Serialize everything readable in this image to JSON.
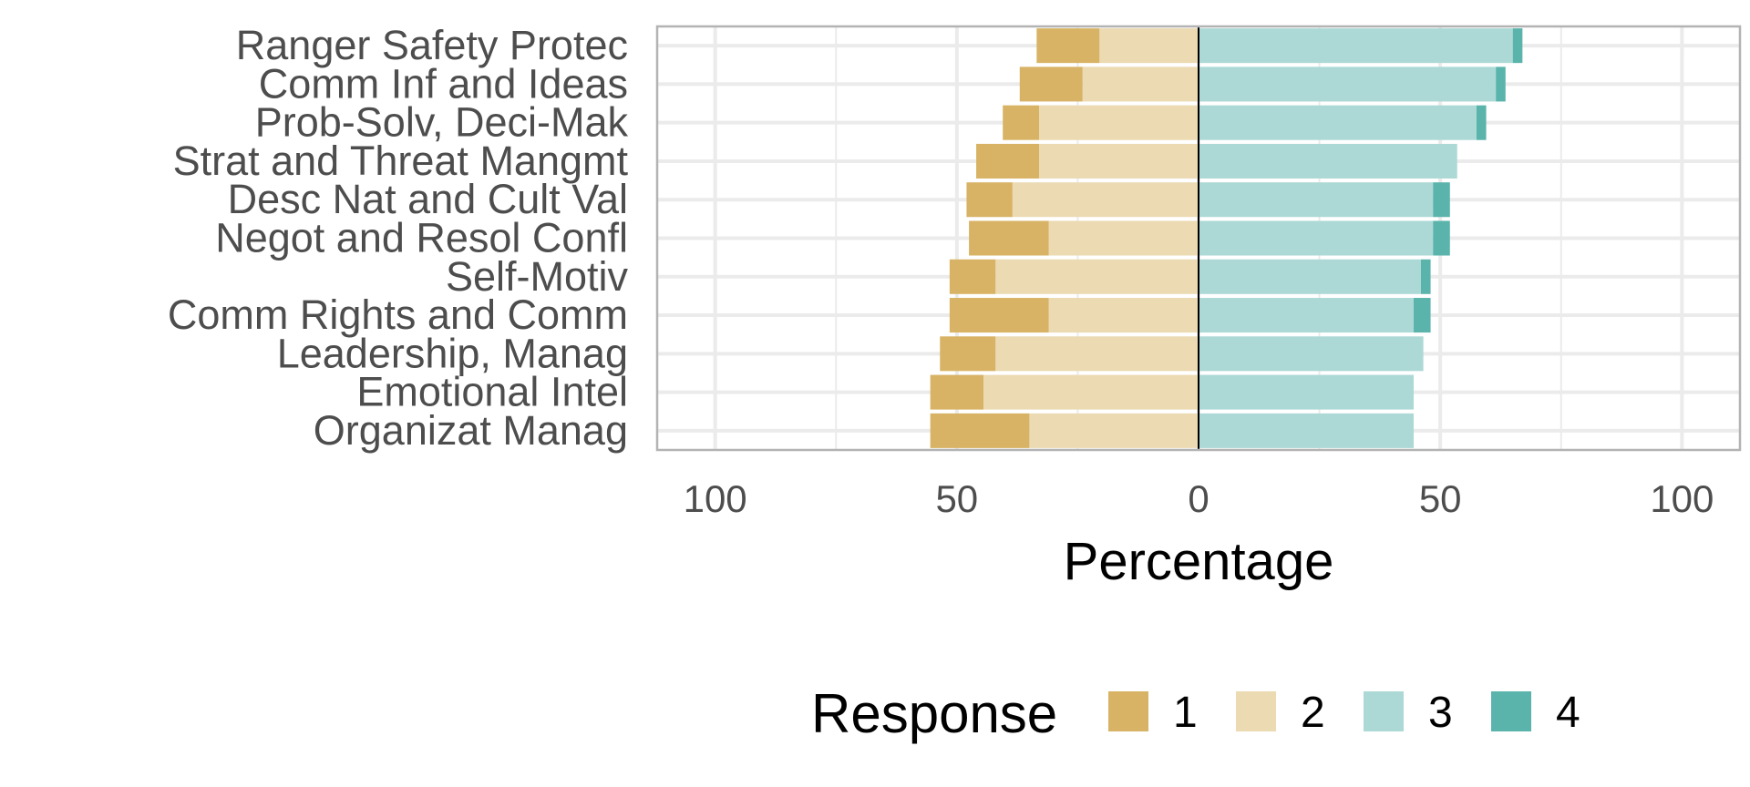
{
  "chart_data": {
    "type": "bar",
    "orientation": "horizontal",
    "layout": "diverging-stacked",
    "categories": [
      "Ranger Safety Protec",
      "Comm Inf and Ideas",
      "Prob-Solv, Deci-Mak",
      "Strat and Threat Mangmt",
      "Desc Nat and Cult Val",
      "Negot and Resol Confl",
      "Self-Motiv",
      "Comm Rights and Comm",
      "Leadership, Manag",
      "Emotional Intel",
      "Organizat Manag"
    ],
    "series": [
      {
        "name": "1",
        "side": "negative",
        "color": "#d8b365",
        "values": [
          13,
          13,
          7.5,
          13,
          9.5,
          16.5,
          9.5,
          20.5,
          11.5,
          11,
          20.5
        ]
      },
      {
        "name": "2",
        "side": "negative",
        "color": "#ebdab2",
        "values": [
          20.5,
          24,
          33,
          33,
          38.5,
          31,
          42,
          31,
          42,
          44.5,
          35
        ]
      },
      {
        "name": "3",
        "side": "positive",
        "color": "#acd9d5",
        "values": [
          65,
          61.5,
          57.5,
          53.5,
          48.5,
          48.5,
          46,
          44.5,
          46.5,
          44.5,
          44.5
        ]
      },
      {
        "name": "4",
        "side": "positive",
        "color": "#5ab4ac",
        "values": [
          2,
          2,
          2,
          0,
          3.5,
          3.5,
          2,
          3.5,
          0,
          0,
          0
        ]
      }
    ],
    "xlabel": "Percentage",
    "ylabel": "",
    "xlim": [
      -112,
      112
    ],
    "xticks": [
      -100,
      -50,
      0,
      50,
      100
    ],
    "xtick_labels": [
      "100",
      "50",
      "0",
      "50",
      "100"
    ],
    "legend": {
      "title": "Response",
      "position": "bottom",
      "items": [
        "1",
        "2",
        "3",
        "4"
      ]
    },
    "grid": true
  }
}
